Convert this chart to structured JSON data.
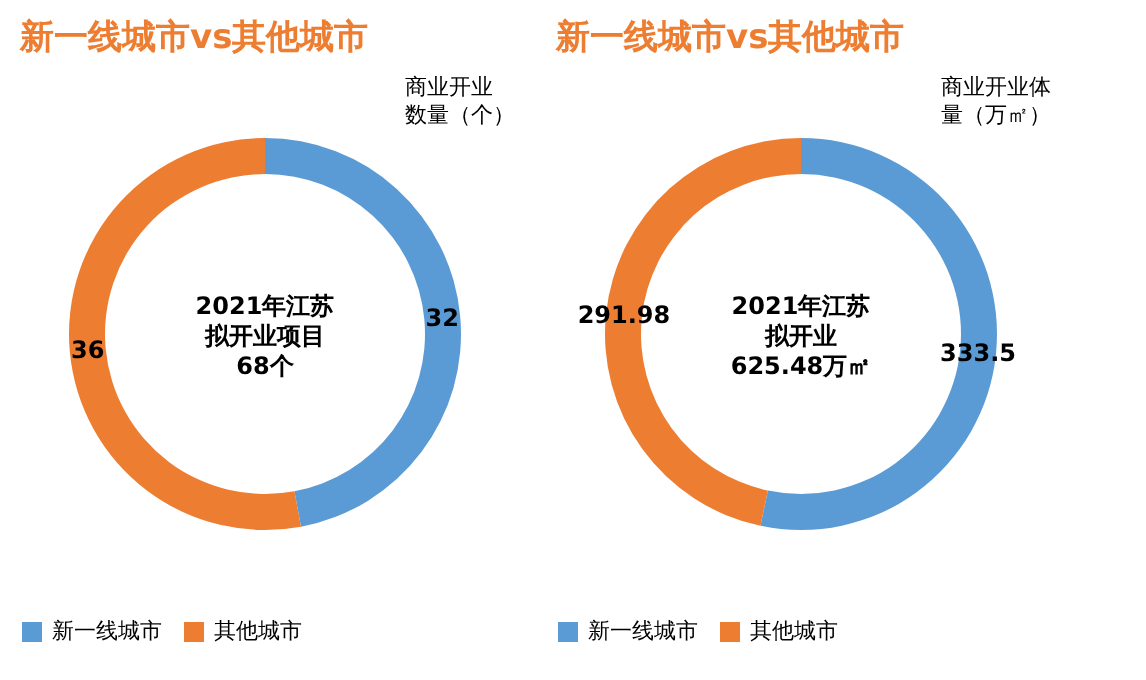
{
  "chart_data": [
    {
      "type": "donut",
      "title": "新一线城市vs其他城市",
      "categories": [
        "新一线城市",
        "其他城市"
      ],
      "values": [
        32,
        36
      ],
      "colors": [
        "#5b9bd5",
        "#ed7d31"
      ],
      "data_labels": true,
      "legend": "bottom",
      "annotations": [
        "2021年江苏",
        "拟开业项目",
        "68个",
        "商业开业",
        "数量（个）"
      ]
    },
    {
      "type": "donut",
      "title": "新一线城市vs其他城市",
      "categories": [
        "新一线城市",
        "其他城市"
      ],
      "values": [
        333.5,
        291.98
      ],
      "colors": [
        "#5b9bd5",
        "#ed7d31"
      ],
      "data_labels": true,
      "legend": "bottom",
      "annotations": [
        "2021年江苏",
        "拟开业",
        "625.48万㎡",
        "商业开业体",
        "量（万㎡）"
      ]
    }
  ]
}
